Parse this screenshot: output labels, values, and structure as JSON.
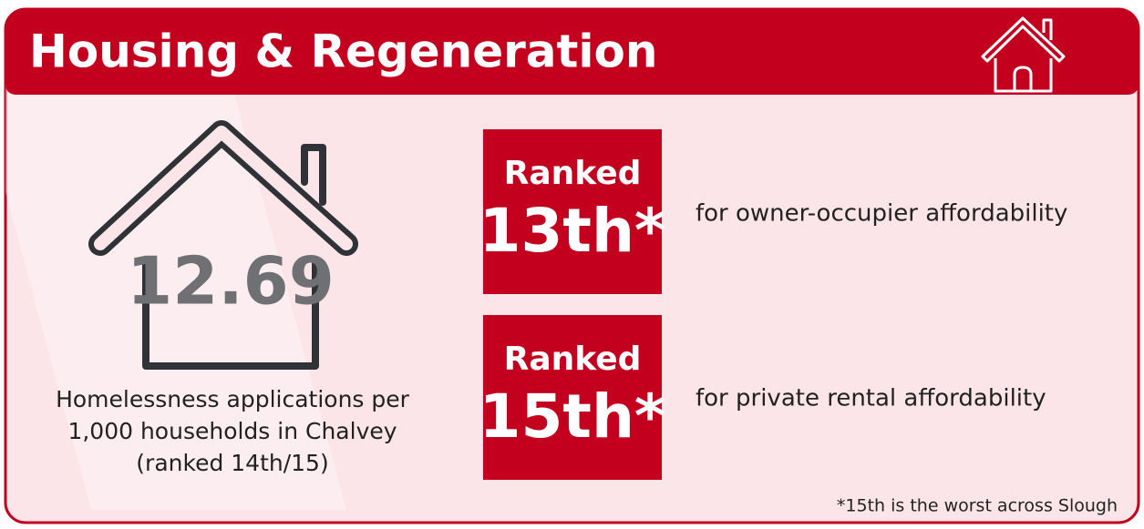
{
  "header": {
    "title": "Housing & Regeneration"
  },
  "homelessness": {
    "value": "12.69",
    "description": [
      "Homelessness applications per",
      "1,000 households in Chalvey",
      "(ranked 14th/15)"
    ]
  },
  "rankings": [
    {
      "label": "Ranked",
      "rank": "13th*",
      "description": "for owner-occupier affordability"
    },
    {
      "label": "Ranked",
      "rank": "15th*",
      "description": "for private rental affordability"
    }
  ],
  "footnote": "*15th is the worst across Slough"
}
